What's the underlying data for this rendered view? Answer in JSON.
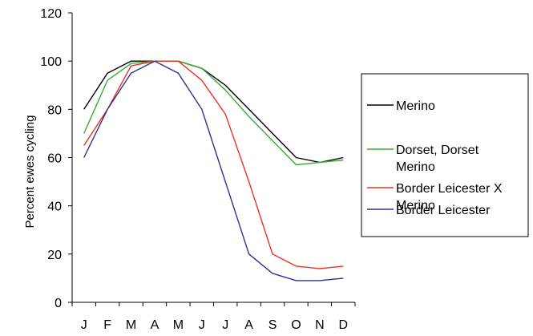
{
  "chart_data": {
    "type": "line",
    "ylabel": "Percent ewes cycling",
    "xlabel": "",
    "categories": [
      "J",
      "F",
      "M",
      "A",
      "M",
      "J",
      "J",
      "A",
      "S",
      "O",
      "N",
      "D"
    ],
    "ylim": [
      0,
      120
    ],
    "yticks": [
      0,
      20,
      40,
      60,
      80,
      100,
      120
    ],
    "grid": false,
    "legend_position": "right",
    "series": [
      {
        "name": "Merino",
        "color": "#000000",
        "values": [
          80,
          95,
          100,
          100,
          100,
          97,
          90,
          80,
          70,
          60,
          58,
          60
        ]
      },
      {
        "name_lines": [
          "Dorset, Dorset",
          "Merino"
        ],
        "color": "#3aaa35",
        "values": [
          70,
          92,
          99,
          100,
          100,
          97,
          88,
          77,
          67,
          57,
          58,
          59
        ]
      },
      {
        "name_lines": [
          "Border Leicester X",
          "Merino"
        ],
        "color": "#ee3224",
        "values": [
          65,
          80,
          98,
          100,
          100,
          92,
          78,
          50,
          20,
          15,
          14,
          15
        ]
      },
      {
        "name": "Border Leicester",
        "color": "#2e3192",
        "values": [
          60,
          80,
          95,
          100,
          95,
          80,
          50,
          20,
          12,
          9,
          9,
          10
        ]
      }
    ]
  }
}
